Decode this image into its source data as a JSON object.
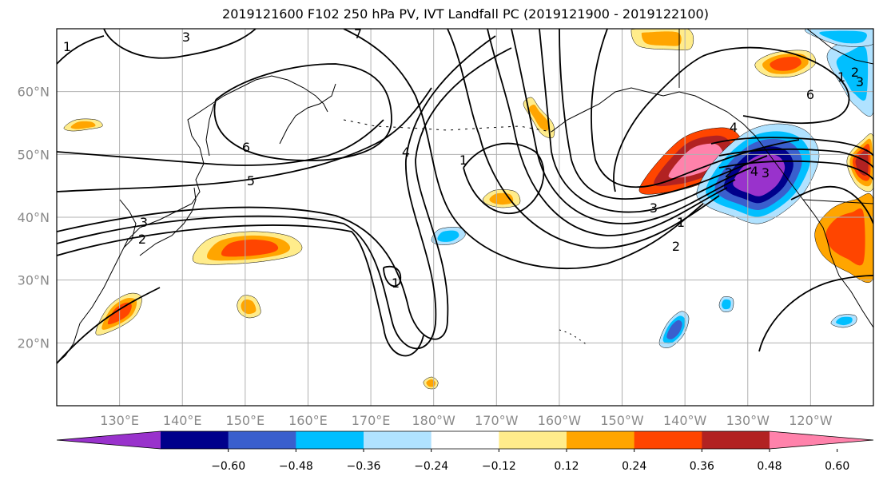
{
  "chart_data": {
    "type": "heatmap",
    "title": "2019121600 F102 250 hPa PV, IVT Landfall PC (2019121900 - 2019122100)",
    "projection": "map",
    "x_ticks": [
      "130°E",
      "140°E",
      "150°E",
      "160°E",
      "170°E",
      "180°W",
      "170°W",
      "160°W",
      "150°W",
      "140°W",
      "130°W",
      "120°W"
    ],
    "y_ticks": [
      "60°N",
      "50°N",
      "40°N",
      "30°N",
      "20°N"
    ],
    "lon_range": [
      120,
      250
    ],
    "lat_range": [
      10,
      70
    ],
    "grid": true,
    "colorbar": {
      "levels": [
        -0.6,
        -0.48,
        -0.36,
        -0.24,
        -0.12,
        0.12,
        0.24,
        0.36,
        0.48,
        0.6
      ],
      "labels": [
        "−0.60",
        "−0.48",
        "−0.36",
        "−0.24",
        "−0.12",
        "0.12",
        "0.24",
        "0.36",
        "0.48",
        "0.60"
      ],
      "colors": [
        "#9932cc",
        "#00008b",
        "#3a5fcd",
        "#00bfff",
        "#b0e2ff",
        "#ffffff",
        "#ffec8b",
        "#ffa500",
        "#ff4500",
        "#b22222",
        "#ff82ab"
      ],
      "extend": "both"
    },
    "contour_labels": [
      "1",
      "3",
      "7",
      "6",
      "5",
      "4",
      "3",
      "2",
      "1",
      "1",
      "3",
      "1",
      "2",
      "3",
      "4",
      "4",
      "2",
      "6",
      "1",
      "2",
      "3"
    ],
    "contour_variable": "250 hPa PV",
    "shading_variable": "IVT Landfall PC"
  },
  "colors": {
    "grid": "#b0b0b0",
    "contour": "#000000",
    "tick_label": "#8a8a8a"
  }
}
